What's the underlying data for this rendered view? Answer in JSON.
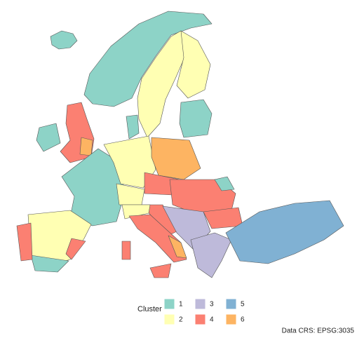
{
  "legend": {
    "title": "Cluster",
    "items": [
      {
        "label": "1",
        "color": "#8DD3C7"
      },
      {
        "label": "2",
        "color": "#FFFFB3"
      },
      {
        "label": "3",
        "color": "#BEBADA"
      },
      {
        "label": "4",
        "color": "#FB8072"
      },
      {
        "label": "5",
        "color": "#80B1D3"
      },
      {
        "label": "6",
        "color": "#FDB462"
      }
    ]
  },
  "caption": "Data CRS: EPSG:3035"
}
